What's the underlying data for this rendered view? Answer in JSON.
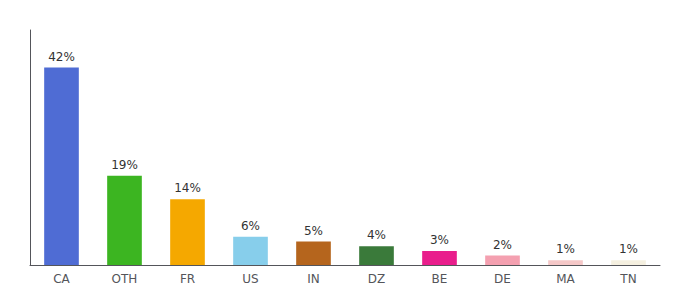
{
  "chart_data": {
    "type": "bar",
    "categories": [
      "CA",
      "OTH",
      "FR",
      "US",
      "IN",
      "DZ",
      "BE",
      "DE",
      "MA",
      "TN"
    ],
    "values": [
      42,
      19,
      14,
      6,
      5,
      4,
      3,
      2,
      1,
      1
    ],
    "value_labels": [
      "42%",
      "19%",
      "14%",
      "6%",
      "5%",
      "4%",
      "3%",
      "2%",
      "1%",
      "1%"
    ],
    "colors": [
      "#4f6cd4",
      "#3cb521",
      "#f5a800",
      "#87ceeb",
      "#b5651d",
      "#3a7a3a",
      "#e91e8c",
      "#f4a0b0",
      "#f5c8c8",
      "#f5f0e0"
    ],
    "data_labels": true,
    "ylim": [
      0,
      50
    ],
    "tick_labels": "x",
    "grid": false
  }
}
